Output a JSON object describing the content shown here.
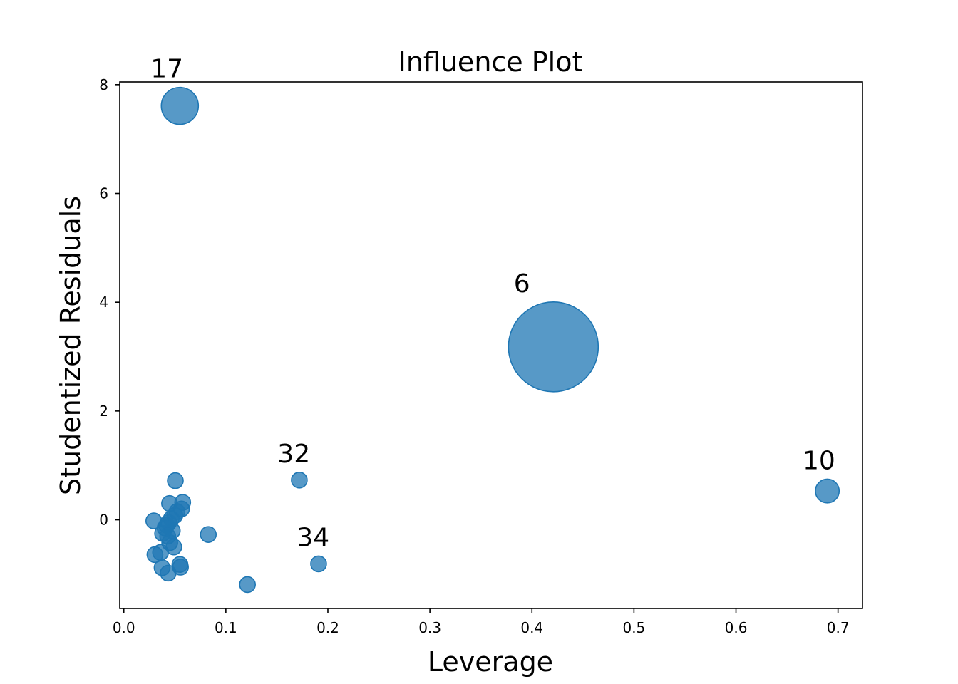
{
  "chart_data": {
    "type": "scatter",
    "title": "Influence Plot",
    "xlabel": "Leverage",
    "ylabel": "Studentized Residuals",
    "xlim": [
      -0.004,
      0.724
    ],
    "ylim": [
      -1.63,
      8.05
    ],
    "xticks": [
      0.0,
      0.1,
      0.2,
      0.3,
      0.4,
      0.5,
      0.6,
      0.7
    ],
    "xtick_labels": [
      "0.0",
      "0.1",
      "0.2",
      "0.3",
      "0.4",
      "0.5",
      "0.6",
      "0.7"
    ],
    "yticks": [
      0,
      2,
      4,
      6,
      8
    ],
    "ytick_labels": [
      "0",
      "2",
      "4",
      "6",
      "8"
    ],
    "grid": false,
    "color": "#1f77b4",
    "point_size_meaning": "Cook's distance (relative)",
    "points": [
      {
        "x": 0.0549,
        "y": 7.61,
        "size": 0.17,
        "label": "17"
      },
      {
        "x": 0.421,
        "y": 3.18,
        "size": 1.0,
        "label": "6"
      },
      {
        "x": 0.6895,
        "y": 0.53,
        "size": 0.07,
        "label": "10"
      },
      {
        "x": 0.172,
        "y": 0.73,
        "size": 0.016,
        "label": "32"
      },
      {
        "x": 0.1909,
        "y": -0.81,
        "size": 0.024,
        "label": "34"
      },
      {
        "x": 0.1212,
        "y": -1.19,
        "size": 0.024,
        "label": ""
      },
      {
        "x": 0.0828,
        "y": -0.27,
        "size": 0.011,
        "label": ""
      },
      {
        "x": 0.0505,
        "y": 0.72,
        "size": 0.013,
        "label": ""
      },
      {
        "x": 0.0577,
        "y": 0.32,
        "size": 0.011,
        "label": ""
      },
      {
        "x": 0.0448,
        "y": 0.3,
        "size": 0.011,
        "label": ""
      },
      {
        "x": 0.0565,
        "y": 0.2,
        "size": 0.011,
        "label": ""
      },
      {
        "x": 0.0521,
        "y": 0.15,
        "size": 0.011,
        "label": ""
      },
      {
        "x": 0.05,
        "y": 0.08,
        "size": 0.011,
        "label": ""
      },
      {
        "x": 0.0294,
        "y": -0.02,
        "size": 0.011,
        "label": ""
      },
      {
        "x": 0.0465,
        "y": 0.02,
        "size": 0.011,
        "label": ""
      },
      {
        "x": 0.044,
        "y": -0.05,
        "size": 0.011,
        "label": ""
      },
      {
        "x": 0.042,
        "y": -0.1,
        "size": 0.011,
        "label": ""
      },
      {
        "x": 0.0405,
        "y": -0.15,
        "size": 0.011,
        "label": ""
      },
      {
        "x": 0.0475,
        "y": -0.2,
        "size": 0.011,
        "label": ""
      },
      {
        "x": 0.038,
        "y": -0.25,
        "size": 0.011,
        "label": ""
      },
      {
        "x": 0.043,
        "y": -0.3,
        "size": 0.011,
        "label": ""
      },
      {
        "x": 0.045,
        "y": -0.42,
        "size": 0.011,
        "label": ""
      },
      {
        "x": 0.049,
        "y": -0.5,
        "size": 0.011,
        "label": ""
      },
      {
        "x": 0.036,
        "y": -0.6,
        "size": 0.011,
        "label": ""
      },
      {
        "x": 0.0305,
        "y": -0.64,
        "size": 0.011,
        "label": ""
      },
      {
        "x": 0.055,
        "y": -0.82,
        "size": 0.011,
        "label": ""
      },
      {
        "x": 0.0555,
        "y": -0.87,
        "size": 0.011,
        "label": ""
      },
      {
        "x": 0.0375,
        "y": -0.88,
        "size": 0.011,
        "label": ""
      },
      {
        "x": 0.0435,
        "y": -0.98,
        "size": 0.011,
        "label": ""
      }
    ]
  }
}
